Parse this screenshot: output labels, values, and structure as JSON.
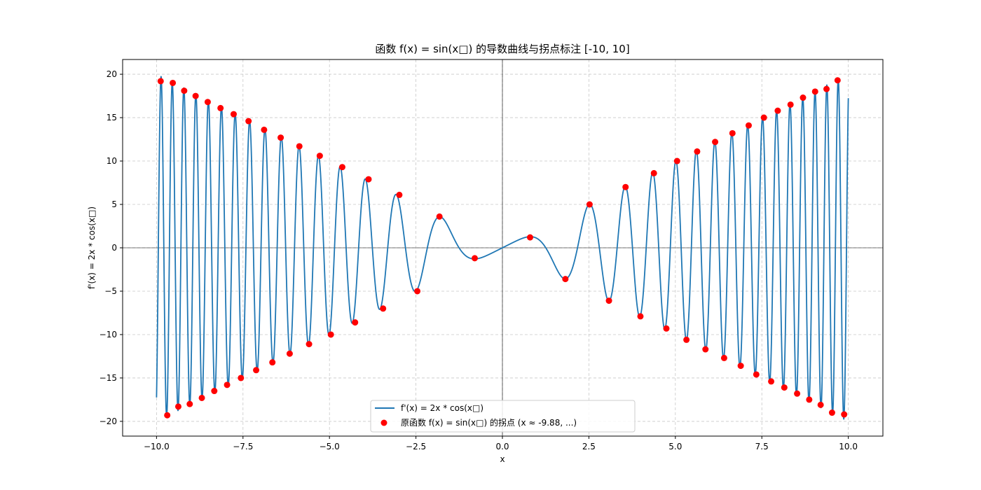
{
  "chart_data": {
    "type": "line",
    "title": "函数 f(x) = sin(x□) 的导数曲线与拐点标注 [-10, 10]",
    "xlabel": "x",
    "ylabel": "f'(x) = 2x * cos(x□)",
    "xlim": [
      -10.98,
      11.0
    ],
    "ylim": [
      -21.7,
      21.7
    ],
    "xticks": [
      -10.0,
      -7.5,
      -5.0,
      -2.5,
      0.0,
      2.5,
      5.0,
      7.5,
      10.0
    ],
    "xtick_labels": [
      "−10.0",
      "−7.5",
      "−5.0",
      "−2.5",
      "0.0",
      "2.5",
      "5.0",
      "7.5",
      "10.0"
    ],
    "yticks": [
      20,
      15,
      10,
      5,
      0,
      -5,
      -10,
      -15,
      -20
    ],
    "ytick_labels": [
      "20",
      "15",
      "10",
      "5",
      "0",
      "−5",
      "−10",
      "−15",
      "−20"
    ],
    "grid": true,
    "grid_style": "dashed",
    "legend_position": "lower-center",
    "series": [
      {
        "name": "f'(x) = 2x * cos(x□)",
        "kind": "line",
        "color": "#1f77b4",
        "function": "2*x*cos(x^2)",
        "x_range": [
          -10,
          10
        ]
      },
      {
        "name": "原函数 f(x) = sin(x□) 的拐点 (x ≈ -9.88, ...)",
        "kind": "scatter",
        "color": "#ff0000",
        "points": [
          [
            -9.88,
            19.2
          ],
          [
            -9.69,
            -19.3
          ],
          [
            -9.53,
            19.0
          ],
          [
            -9.37,
            -18.3
          ],
          [
            -9.2,
            18.1
          ],
          [
            -9.04,
            -18.0
          ],
          [
            -8.87,
            17.5
          ],
          [
            -8.69,
            -17.3
          ],
          [
            -8.52,
            16.8
          ],
          [
            -8.33,
            -16.5
          ],
          [
            -8.15,
            16.1
          ],
          [
            -7.96,
            -15.8
          ],
          [
            -7.77,
            15.4
          ],
          [
            -7.56,
            -15.0
          ],
          [
            -7.34,
            14.6
          ],
          [
            -7.12,
            -14.1
          ],
          [
            -6.89,
            13.6
          ],
          [
            -6.65,
            -13.2
          ],
          [
            -6.41,
            12.7
          ],
          [
            -6.15,
            -12.2
          ],
          [
            -5.87,
            11.7
          ],
          [
            -5.59,
            -11.1
          ],
          [
            -5.28,
            10.6
          ],
          [
            -4.96,
            -10.0
          ],
          [
            -4.63,
            9.3
          ],
          [
            -4.26,
            -8.6
          ],
          [
            -3.87,
            7.9
          ],
          [
            -3.45,
            -7.0
          ],
          [
            -2.98,
            6.1
          ],
          [
            -2.46,
            -5.0
          ],
          [
            -1.82,
            3.6
          ],
          [
            -0.8,
            -1.2
          ],
          [
            0.8,
            1.2
          ],
          [
            1.82,
            -3.6
          ],
          [
            2.52,
            5.0
          ],
          [
            3.08,
            -6.1
          ],
          [
            3.56,
            7.0
          ],
          [
            3.99,
            -7.9
          ],
          [
            4.38,
            8.6
          ],
          [
            4.74,
            -9.3
          ],
          [
            5.05,
            10.0
          ],
          [
            5.32,
            -10.6
          ],
          [
            5.63,
            11.1
          ],
          [
            5.87,
            -11.7
          ],
          [
            6.15,
            12.2
          ],
          [
            6.41,
            -12.7
          ],
          [
            6.65,
            13.2
          ],
          [
            6.89,
            -13.6
          ],
          [
            7.12,
            14.1
          ],
          [
            7.34,
            -14.6
          ],
          [
            7.56,
            15.0
          ],
          [
            7.77,
            -15.4
          ],
          [
            7.96,
            15.8
          ],
          [
            8.15,
            -16.1
          ],
          [
            8.33,
            16.5
          ],
          [
            8.52,
            -16.8
          ],
          [
            8.69,
            17.3
          ],
          [
            8.87,
            -17.5
          ],
          [
            9.04,
            18.0
          ],
          [
            9.2,
            -18.1
          ],
          [
            9.37,
            18.3
          ],
          [
            9.53,
            -19.0
          ],
          [
            9.69,
            19.3
          ],
          [
            9.88,
            -19.2
          ]
        ]
      }
    ]
  }
}
